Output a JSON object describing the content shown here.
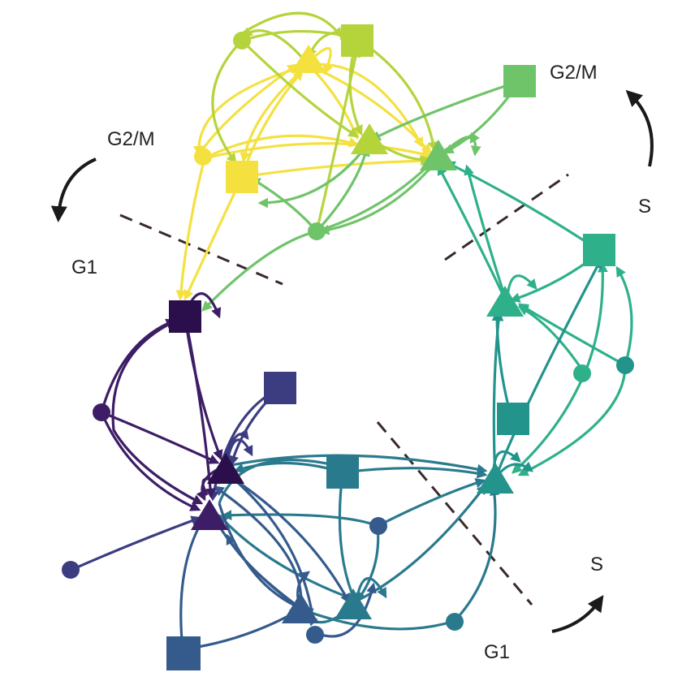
{
  "labels": {
    "g2m_left": "G2/M",
    "g1_left": "G1",
    "g2m_right": "G2/M",
    "s_right": "S",
    "s_bottom": "S",
    "g1_bottom": "G1"
  },
  "palette": {
    "yellow": "#f4e140",
    "lime": "#b5d43c",
    "green": "#6fc46a",
    "teal_light": "#2eb08b",
    "teal": "#22948c",
    "blue_teal": "#2a7a8e",
    "blue": "#355b8c",
    "indigo": "#3b3d80",
    "purple": "#3d1d66",
    "dark_purple": "#2b0f4c",
    "boundary": "#3a2a2a",
    "arrow": "#1a1a1a"
  },
  "node_shapes": {
    "square": "gene-square",
    "triangle": "gene-triangle",
    "circle": "gene-circle"
  }
}
